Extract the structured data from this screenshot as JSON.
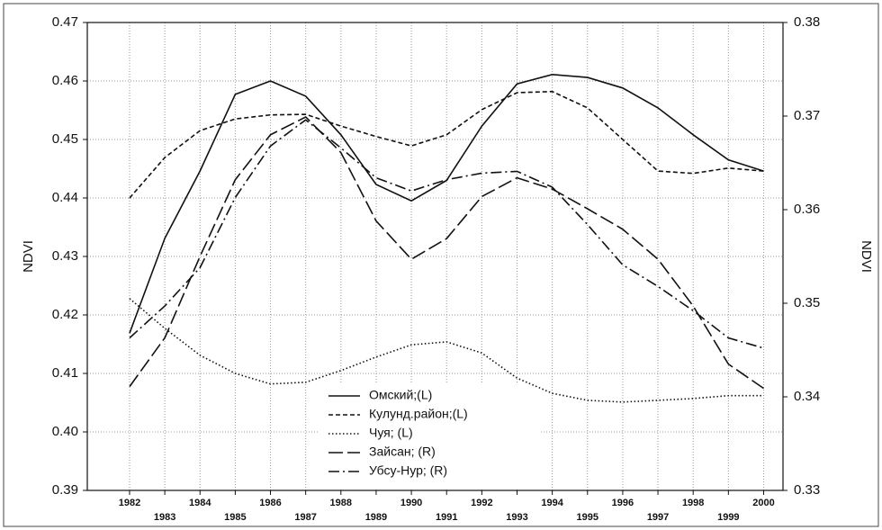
{
  "chart_data": {
    "type": "line",
    "x": [
      1982,
      1983,
      1984,
      1985,
      1986,
      1987,
      1988,
      1989,
      1990,
      1991,
      1992,
      1993,
      1994,
      1995,
      1996,
      1997,
      1998,
      1999,
      2000
    ],
    "xlim": [
      1980.8,
      2000.55
    ],
    "xticks": [
      1982,
      1983,
      1984,
      1985,
      1986,
      1987,
      1988,
      1989,
      1990,
      1991,
      1992,
      1993,
      1994,
      1995,
      1996,
      1997,
      1998,
      1999,
      2000
    ],
    "ylabel": "NDVI",
    "y2label": "NDVI",
    "ylim": [
      0.39,
      0.47
    ],
    "yticks": [
      0.39,
      {
        "value": 0.4,
        "label": "0.40"
      },
      0.41,
      0.42,
      0.43,
      0.44,
      0.45,
      0.46,
      0.47
    ],
    "y2lim": [
      0.33,
      0.38
    ],
    "y2ticks": [
      0.33,
      0.34,
      0.35,
      0.36,
      0.37,
      0.38
    ],
    "grid": true,
    "series": [
      {
        "name": "Омский;(L)",
        "color": "#111111",
        "style": "solid",
        "values": [
          0.4169,
          0.4331,
          0.4446,
          0.4577,
          0.46,
          0.4574,
          0.4508,
          0.4423,
          0.4395,
          0.443,
          0.4523,
          0.4595,
          0.4611,
          0.4606,
          0.4588,
          0.4554,
          0.4508,
          0.4465,
          0.4446
        ]
      },
      {
        "name": "Кулунд.район;(L)",
        "color": "#111111",
        "style": "dashed",
        "values": [
          0.44,
          0.4469,
          0.4515,
          0.4535,
          0.4542,
          0.4543,
          0.4523,
          0.4505,
          0.4489,
          0.4508,
          0.4551,
          0.458,
          0.4582,
          0.4554,
          0.45,
          0.4446,
          0.4442,
          0.4451,
          0.4446
        ]
      },
      {
        "name": "Чуя; (L)",
        "color": "#111111",
        "style": "dotted",
        "values": [
          0.4228,
          0.4177,
          0.4131,
          0.41,
          0.4082,
          0.4085,
          0.4105,
          0.4128,
          0.4149,
          0.4154,
          0.4135,
          0.4092,
          0.4066,
          0.4054,
          0.4051,
          0.4054,
          0.4057,
          0.4062,
          0.4062
        ]
      },
      {
        "name": "Зайсан; (R)",
        "color": "#111111",
        "style": "longdash",
        "axis": "y2",
        "values": [
          0.3411,
          0.3463,
          0.355,
          0.3632,
          0.368,
          0.3699,
          0.3661,
          0.3588,
          0.3547,
          0.3569,
          0.3614,
          0.3634,
          0.3622,
          0.3601,
          0.3579,
          0.3547,
          0.3497,
          0.3435,
          0.3409
        ]
      },
      {
        "name": "Убсу-Нур; (R)",
        "color": "#111111",
        "style": "dashdot",
        "axis": "y2",
        "values": [
          0.3463,
          0.3497,
          0.3538,
          0.3613,
          0.3668,
          0.3696,
          0.3666,
          0.3634,
          0.362,
          0.3632,
          0.3639,
          0.3641,
          0.3624,
          0.3584,
          0.3541,
          0.3518,
          0.3492,
          0.3463,
          0.3452
        ]
      }
    ]
  }
}
